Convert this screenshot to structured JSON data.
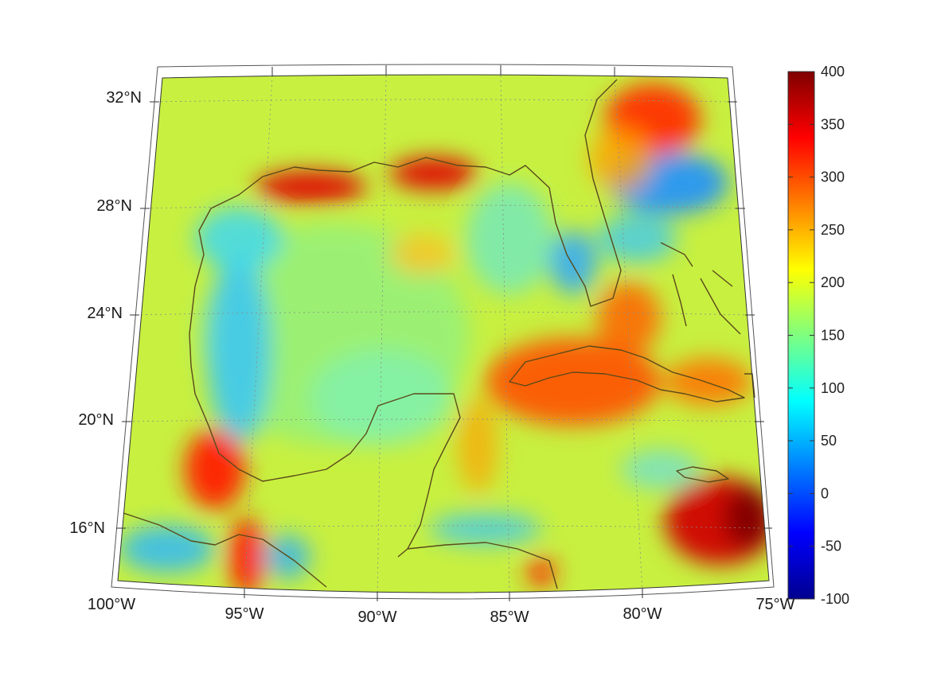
{
  "map": {
    "longitude_labels": [
      "100°W",
      "95°W",
      "90°W",
      "85°W",
      "80°W",
      "75°W"
    ],
    "latitude_labels": [
      "32°N",
      "28°N",
      "24°N",
      "20°N",
      "16°N"
    ],
    "coast_color": "#5a4a1a",
    "grid": true,
    "hot_spots": [
      {
        "region": "northern-gulf-coast-west",
        "level": 360
      },
      {
        "region": "mississippi-delta",
        "level": 340
      },
      {
        "region": "southeast-us-offshore",
        "level": 330
      },
      {
        "region": "cuba-cayman",
        "level": 320
      },
      {
        "region": "jamaica-south",
        "level": 390
      },
      {
        "region": "tehuantepec",
        "level": 360
      },
      {
        "region": "veracruz",
        "level": 330
      }
    ],
    "cool_spots": [
      {
        "region": "florida-atlantic",
        "level": 70
      },
      {
        "region": "western-gulf-shelf",
        "level": 80
      },
      {
        "region": "gulf-of-honduras",
        "level": 90
      },
      {
        "region": "pacific-southwest",
        "level": 90
      }
    ]
  },
  "colorbar": {
    "labels": [
      "400",
      "350",
      "300",
      "250",
      "200",
      "150",
      "100",
      "50",
      "0",
      "-50",
      "-100"
    ],
    "min": -100,
    "max": 400,
    "colors": [
      "#00008f",
      "#0000ff",
      "#007fff",
      "#00ffff",
      "#7fff7f",
      "#ffff00",
      "#ff7f00",
      "#ff0000",
      "#7f0000"
    ]
  }
}
